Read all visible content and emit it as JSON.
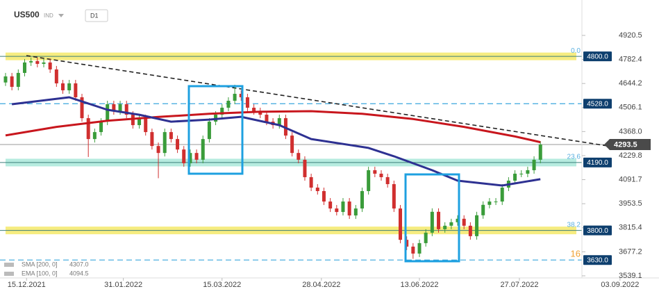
{
  "chart_data": {
    "type": "candlestick",
    "title": "US500",
    "subtitle": "IND",
    "timeframe": "D1",
    "ylim": [
      3527,
      5092
    ],
    "yticks": [
      4920.5,
      4782.4,
      4644.2,
      4506.1,
      {
        "value": 4368,
        "label": "4368.0"
      },
      4229.8,
      4091.7,
      3953.5,
      3815.4,
      3677.2,
      3539.1
    ],
    "xlim": [
      -0.87,
      90.19
    ],
    "xticks": [
      {
        "value": 3.3,
        "label": "15.12.2021"
      },
      {
        "value": 18.5,
        "label": "31.01.2022"
      },
      {
        "value": 34.0,
        "label": "15.03.2022"
      },
      {
        "value": 49.6,
        "label": "28.04.2022"
      },
      {
        "value": 65.0,
        "label": "13.06.2022"
      },
      {
        "value": 80.7,
        "label": "27.07.2022"
      },
      {
        "value": 96.5,
        "label": "03.09.2022"
      }
    ],
    "up_color": "#3a9c3a",
    "down_color": "#d02f2f",
    "open": [
      4650,
      4685,
      4625,
      4705,
      4765,
      4773,
      4757,
      4765,
      4725,
      4645,
      4605,
      4645,
      4565,
      4445,
      4325,
      4365,
      4425,
      4525,
      4485,
      4525,
      4465,
      4405,
      4445,
      4365,
      4285,
      4245,
      4365,
      4325,
      4265,
      4186,
      4245,
      4206,
      4325,
      4425,
      4465,
      4505,
      4545,
      4585,
      4565,
      4505,
      4485,
      4465,
      4425,
      4405,
      4445,
      4345,
      4245,
      4206,
      4106,
      4046,
      4026,
      3966,
      3926,
      3906,
      3966,
      3886,
      3926,
      4026,
      4146,
      4126,
      4106,
      4066,
      3926,
      3746,
      3707,
      3667,
      3727,
      3787,
      3907,
      3807,
      3827,
      3847,
      3867,
      3827,
      3767,
      3887,
      3947,
      3966,
      3966,
      4046,
      4086,
      4126,
      4126,
      4146,
      4206
    ],
    "high": [
      4705,
      4705,
      4725,
      4785,
      4793,
      4793,
      4785,
      4785,
      4745,
      4665,
      4665,
      4665,
      4585,
      4465,
      4385,
      4445,
      4545,
      4545,
      4545,
      4545,
      4485,
      4465,
      4465,
      4385,
      4305,
      4385,
      4385,
      4345,
      4285,
      4265,
      4265,
      4345,
      4445,
      4485,
      4525,
      4565,
      4637,
      4605,
      4585,
      4525,
      4505,
      4485,
      4445,
      4465,
      4465,
      4365,
      4265,
      4226,
      4126,
      4066,
      4046,
      3986,
      3946,
      3986,
      3986,
      3946,
      4046,
      4166,
      4166,
      4146,
      4126,
      4086,
      3946,
      3766,
      3727,
      3747,
      3807,
      3927,
      3927,
      3847,
      3867,
      3887,
      3887,
      3847,
      3907,
      3967,
      3986,
      3986,
      4066,
      4106,
      4146,
      4146,
      4166,
      4226,
      4313
    ],
    "low": [
      4630,
      4605,
      4605,
      4685,
      4745,
      4737,
      4737,
      4705,
      4625,
      4585,
      4585,
      4545,
      4425,
      4222,
      4305,
      4345,
      4405,
      4465,
      4465,
      4445,
      4385,
      4385,
      4345,
      4265,
      4100,
      4225,
      4305,
      4245,
      4166,
      4166,
      4186,
      4186,
      4305,
      4405,
      4445,
      4485,
      4525,
      4545,
      4485,
      4465,
      4445,
      4405,
      4385,
      4385,
      4325,
      4225,
      4186,
      4086,
      4026,
      4006,
      3946,
      3906,
      3886,
      3886,
      3866,
      3866,
      3906,
      4006,
      4106,
      4086,
      4046,
      3906,
      3726,
      3687,
      3637,
      3647,
      3707,
      3767,
      3787,
      3787,
      3807,
      3827,
      3807,
      3747,
      3747,
      3867,
      3927,
      3946,
      3946,
      4026,
      4066,
      4106,
      4106,
      4126,
      4186
    ],
    "close": [
      4685,
      4625,
      4705,
      4765,
      4773,
      4757,
      4765,
      4725,
      4645,
      4605,
      4645,
      4565,
      4445,
      4325,
      4365,
      4425,
      4525,
      4485,
      4525,
      4465,
      4405,
      4445,
      4365,
      4285,
      4245,
      4365,
      4325,
      4265,
      4186,
      4245,
      4206,
      4325,
      4425,
      4465,
      4505,
      4545,
      4585,
      4565,
      4505,
      4485,
      4465,
      4425,
      4405,
      4445,
      4345,
      4245,
      4206,
      4106,
      4046,
      4026,
      3966,
      3926,
      3906,
      3966,
      3886,
      3926,
      4026,
      4146,
      4126,
      4106,
      4066,
      3926,
      3746,
      3707,
      3667,
      3727,
      3787,
      3907,
      3807,
      3827,
      3847,
      3867,
      3827,
      3767,
      3887,
      3947,
      3966,
      3966,
      4046,
      4086,
      4126,
      4126,
      4146,
      4206,
      4293.5
    ],
    "series": [
      {
        "name": "SMA [200, 0]",
        "color": "#c8161d",
        "x": [
          0,
          8,
          16,
          24,
          32,
          40,
          48,
          56,
          64,
          72,
          80,
          84
        ],
        "values": [
          4346,
          4395,
          4430,
          4452,
          4470,
          4482,
          4485,
          4470,
          4440,
          4395,
          4340,
          4307
        ],
        "last_label": "4307.0"
      },
      {
        "name": "EMA [100, 0]",
        "color": "#2e3192",
        "x": [
          1,
          10,
          16,
          21,
          26,
          32,
          37,
          43,
          48,
          57,
          61,
          67,
          71,
          78,
          84
        ],
        "values": [
          4525,
          4565,
          4493,
          4465,
          4425,
          4437,
          4453,
          4405,
          4325,
          4274,
          4226,
          4146,
          4086,
          4058,
          4094.5
        ],
        "last_label": "4094.5"
      }
    ],
    "levels": [
      {
        "value": 4800,
        "label": "4800.0",
        "fib": "0.0",
        "color": "#f5e96a",
        "band": true
      },
      {
        "value": 4528,
        "label": "4528.0",
        "color": "#3aa6dd",
        "band": false
      },
      {
        "value": 4190,
        "label": "4190.0",
        "fib": "23.6",
        "color": "#a9e8d9",
        "band": true
      },
      {
        "value": 3800,
        "label": "3800.0",
        "fib": "38.2",
        "color": "#f5e96a",
        "band": true
      },
      {
        "value": 3630,
        "label": "3630.0",
        "fib": "16",
        "color": "#3aa6dd",
        "band": false
      }
    ],
    "last_price": 4293.5
  }
}
